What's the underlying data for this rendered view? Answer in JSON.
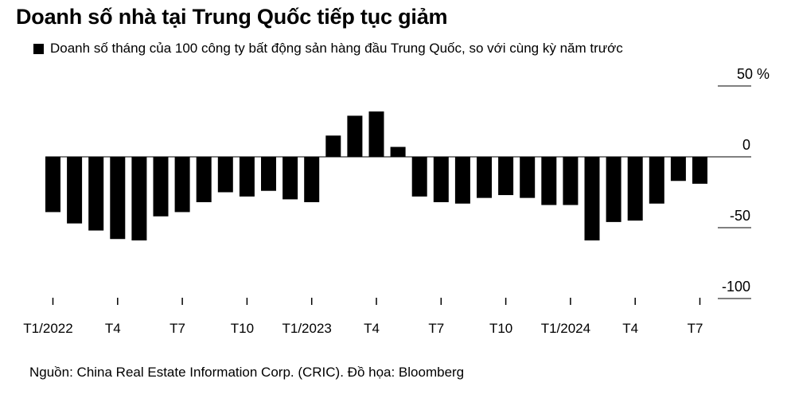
{
  "header": {
    "title": "Doanh số nhà tại Trung Quốc tiếp tục giảm",
    "legend_label": "Doanh số tháng của 100 công ty bất động sản hàng đầu Trung Quốc, so với cùng kỳ năm trước"
  },
  "chart_data": {
    "type": "bar",
    "title": "Doanh số nhà tại Trung Quốc tiếp tục giảm",
    "series": [
      {
        "name": "Doanh số tháng của 100 công ty bất động sản hàng đầu Trung Quốc, so với cùng kỳ năm trước",
        "color": "#000000",
        "values": [
          -39,
          -47,
          -52,
          -58,
          -59,
          -42,
          -39,
          -32,
          -25,
          -28,
          -24,
          -30,
          -32,
          15,
          29,
          32,
          7,
          -28,
          -32,
          -33,
          -29,
          -27,
          -29,
          -34,
          -34,
          -59,
          -46,
          -45,
          -33,
          -17,
          -19
        ]
      }
    ],
    "categories": [
      "T1/2022",
      "T2/2022",
      "T3/2022",
      "T4/2022",
      "T5/2022",
      "T6/2022",
      "T7/2022",
      "T8/2022",
      "T9/2022",
      "T10/2022",
      "T11/2022",
      "T12/2022",
      "T1/2023",
      "T2/2023",
      "T3/2023",
      "T4/2023",
      "T5/2023",
      "T6/2023",
      "T7/2023",
      "T8/2023",
      "T9/2023",
      "T10/2023",
      "T11/2023",
      "T12/2023",
      "T1/2024",
      "T2/2024",
      "T3/2024",
      "T4/2024",
      "T5/2024",
      "T6/2024",
      "T7/2024"
    ],
    "x_tick_labels": [
      {
        "index": 0,
        "label": "T1/2022"
      },
      {
        "index": 3,
        "label": "T4"
      },
      {
        "index": 6,
        "label": "T7"
      },
      {
        "index": 9,
        "label": "T10"
      },
      {
        "index": 12,
        "label": "T1/2023"
      },
      {
        "index": 15,
        "label": "T4"
      },
      {
        "index": 18,
        "label": "T7"
      },
      {
        "index": 21,
        "label": "T10"
      },
      {
        "index": 24,
        "label": "T1/2024"
      },
      {
        "index": 27,
        "label": "T4"
      },
      {
        "index": 30,
        "label": "T7"
      }
    ],
    "y_ticks": [
      {
        "value": 50,
        "label": "50 %"
      },
      {
        "value": 0,
        "label": "0"
      },
      {
        "value": -50,
        "label": "-50"
      },
      {
        "value": -100,
        "label": "-100"
      }
    ],
    "ylim": [
      -100,
      50
    ],
    "xlabel": "",
    "ylabel": "",
    "grid": false,
    "legend_position": "top-left"
  },
  "footer": {
    "source": "Nguồn: China Real Estate Information Corp. (CRIC). Đồ họa: Bloomberg"
  }
}
